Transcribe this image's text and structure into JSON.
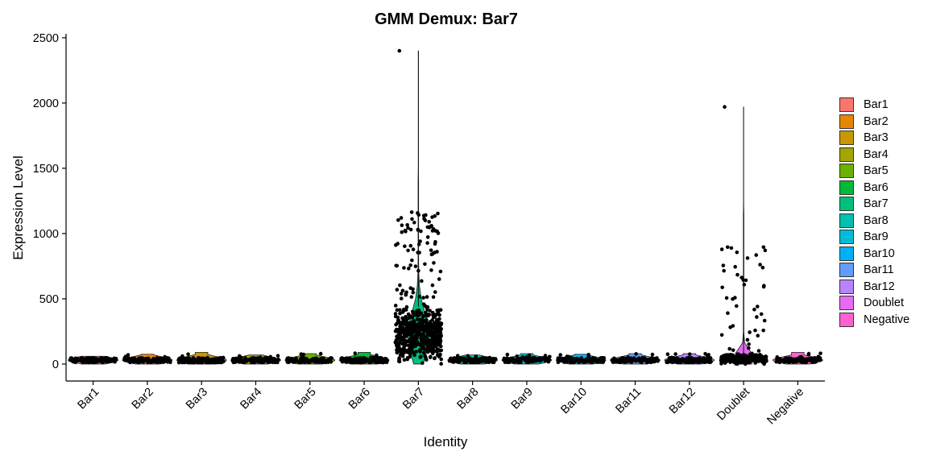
{
  "chart_data": {
    "type": "violin",
    "title": "GMM Demux: Bar7",
    "xlabel": "Identity",
    "ylabel": "Expression Level",
    "ylim": [
      -130,
      2530
    ],
    "yticks": [
      0,
      500,
      1000,
      1500,
      2000,
      2500
    ],
    "categories": [
      "Bar1",
      "Bar2",
      "Bar3",
      "Bar4",
      "Bar5",
      "Bar6",
      "Bar7",
      "Bar8",
      "Bar9",
      "Bar10",
      "Bar11",
      "Bar12",
      "Doublet",
      "Negative"
    ],
    "colors": [
      "#F8766D",
      "#E58700",
      "#C99800",
      "#A3A500",
      "#6BB100",
      "#00BA38",
      "#00BF7D",
      "#00C0AF",
      "#00BCD8",
      "#00B0F6",
      "#619CFF",
      "#B983FF",
      "#E76BF3",
      "#FD61D1"
    ],
    "series": [
      {
        "name": "Bar1",
        "median": 30,
        "spread": 25,
        "max": 60,
        "count": 120
      },
      {
        "name": "Bar2",
        "median": 30,
        "spread": 25,
        "max": 75,
        "count": 110
      },
      {
        "name": "Bar3",
        "median": 30,
        "spread": 28,
        "max": 90,
        "count": 130
      },
      {
        "name": "Bar4",
        "median": 30,
        "spread": 25,
        "max": 70,
        "count": 120
      },
      {
        "name": "Bar5",
        "median": 30,
        "spread": 25,
        "max": 80,
        "count": 110
      },
      {
        "name": "Bar6",
        "median": 30,
        "spread": 28,
        "max": 90,
        "count": 130
      },
      {
        "name": "Bar7",
        "median": 220,
        "spread": 900,
        "max": 2400,
        "count": 600
      },
      {
        "name": "Bar8",
        "median": 30,
        "spread": 25,
        "max": 70,
        "count": 120
      },
      {
        "name": "Bar9",
        "median": 30,
        "spread": 25,
        "max": 80,
        "count": 110
      },
      {
        "name": "Bar10",
        "median": 30,
        "spread": 25,
        "max": 75,
        "count": 115
      },
      {
        "name": "Bar11",
        "median": 30,
        "spread": 25,
        "max": 80,
        "count": 115
      },
      {
        "name": "Bar12",
        "median": 30,
        "spread": 25,
        "max": 80,
        "count": 120
      },
      {
        "name": "Doublet",
        "median": 40,
        "spread": 600,
        "max": 1970,
        "count": 320
      },
      {
        "name": "Negative",
        "median": 30,
        "spread": 25,
        "max": 90,
        "count": 110
      }
    ],
    "grid": false,
    "legend_position": "right",
    "legend_entries": [
      "Bar1",
      "Bar2",
      "Bar3",
      "Bar4",
      "Bar5",
      "Bar6",
      "Bar7",
      "Bar8",
      "Bar9",
      "Bar10",
      "Bar11",
      "Bar12",
      "Doublet",
      "Negative"
    ]
  }
}
